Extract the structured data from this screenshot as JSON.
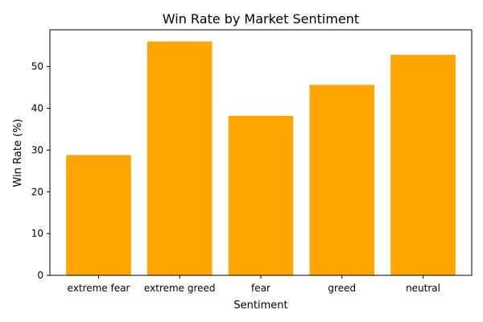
{
  "colors": {
    "bar": "#ffa500",
    "axis": "#000000",
    "background": "#ffffff"
  },
  "chart_data": {
    "type": "bar",
    "title": "Win Rate by Market Sentiment",
    "xlabel": "Sentiment",
    "ylabel": "Win Rate (%)",
    "categories": [
      "extreme fear",
      "extreme greed",
      "fear",
      "greed",
      "neutral"
    ],
    "values": [
      28.8,
      56.0,
      38.2,
      45.6,
      52.8
    ],
    "ylim": [
      0,
      58.8
    ],
    "yticks": [
      0,
      10,
      20,
      30,
      40,
      50
    ],
    "grid": false,
    "legend": "none"
  }
}
